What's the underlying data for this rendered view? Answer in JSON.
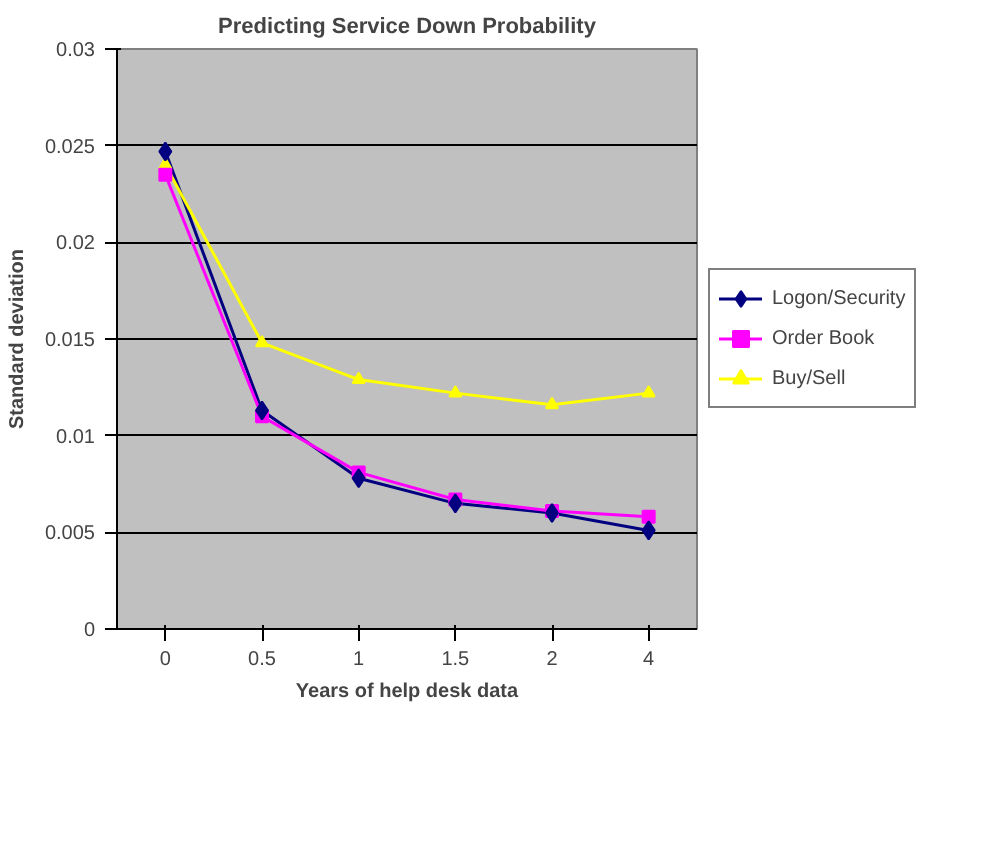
{
  "chart_data": {
    "type": "line",
    "title": "Predicting Service Down Probability",
    "xlabel": "Years of help desk data",
    "ylabel": "Standard deviation",
    "categories": [
      "0",
      "0.5",
      "1",
      "1.5",
      "2",
      "4"
    ],
    "series": [
      {
        "name": "Logon/Security",
        "color": "#000080",
        "marker": "diamond",
        "values": [
          0.0247,
          0.0113,
          0.0078,
          0.0065,
          0.006,
          0.0051
        ]
      },
      {
        "name": "Order Book",
        "color": "#ff00ff",
        "marker": "square",
        "values": [
          0.0235,
          0.011,
          0.0081,
          0.0067,
          0.0061,
          0.0058
        ]
      },
      {
        "name": "Buy/Sell",
        "color": "#ffff00",
        "marker": "triangle",
        "values": [
          0.024,
          0.0148,
          0.0129,
          0.0122,
          0.0116,
          0.0122
        ]
      }
    ],
    "ylim": [
      0,
      0.03
    ],
    "yticks": [
      0,
      0.005,
      0.01,
      0.015,
      0.02,
      0.025,
      0.03
    ],
    "grid": "y",
    "legend": "right"
  }
}
